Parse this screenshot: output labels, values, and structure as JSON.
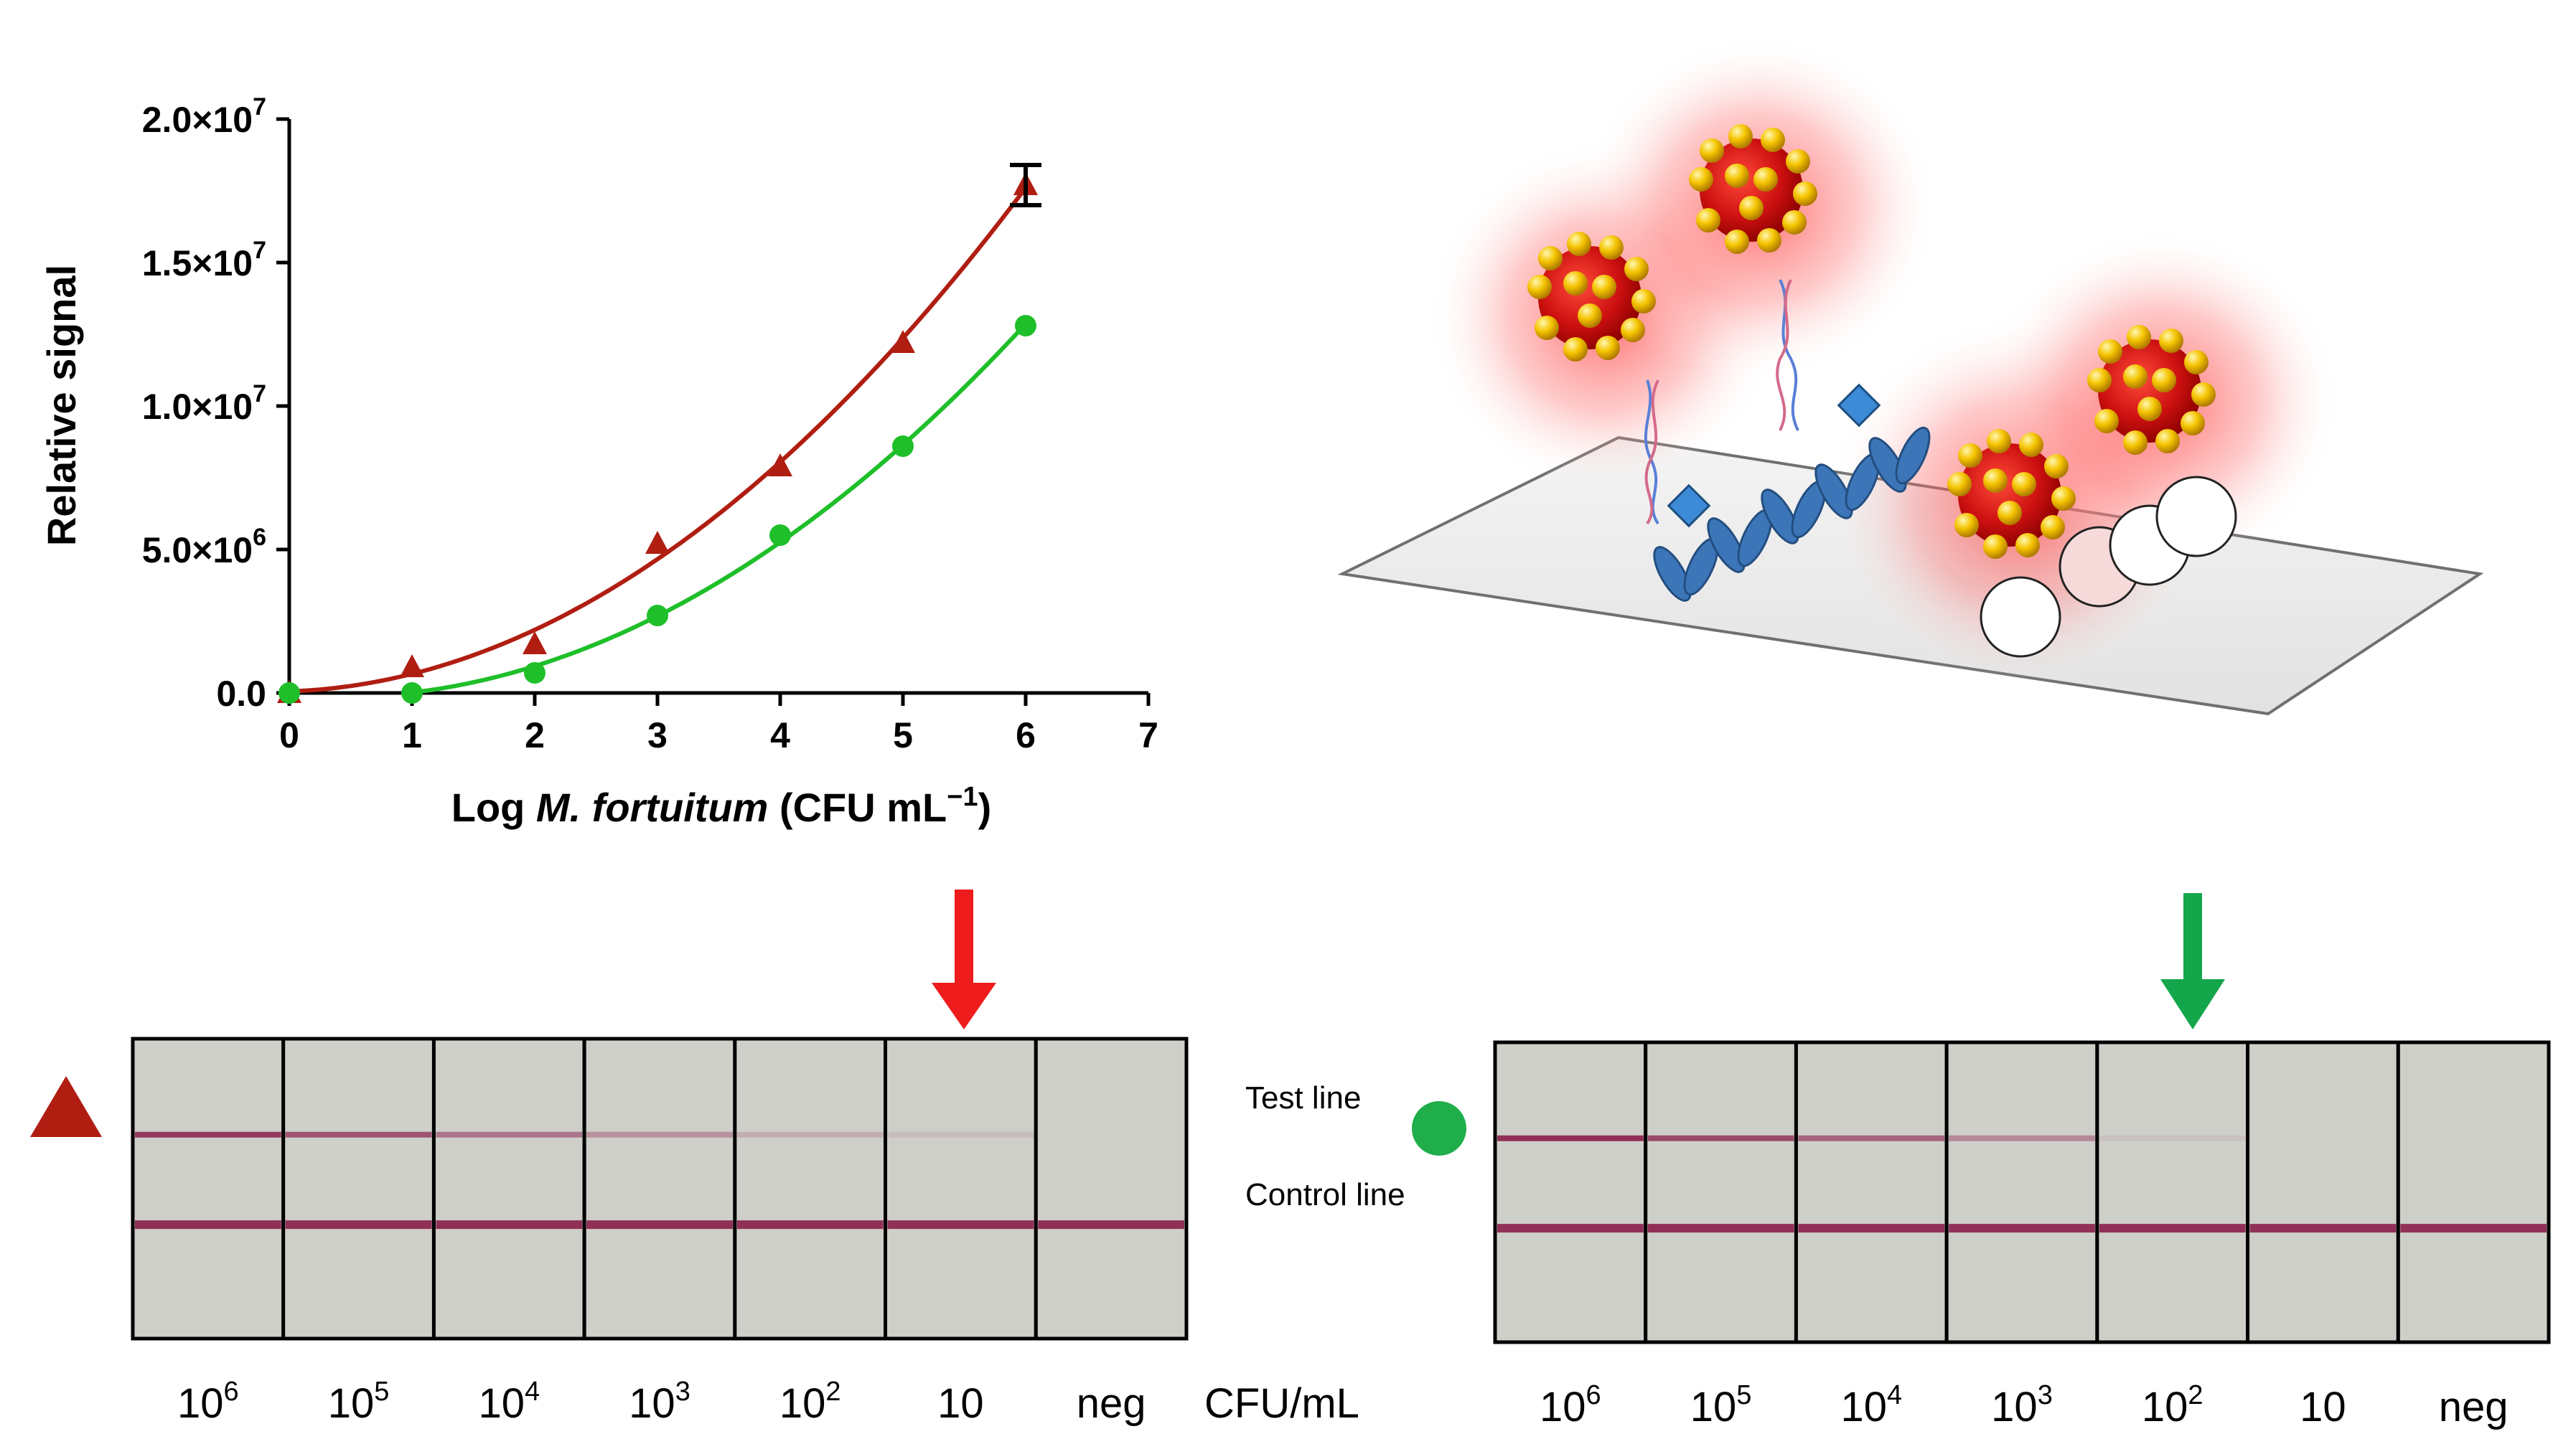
{
  "colors": {
    "series_red": "#b01e12",
    "series_green": "#1fbf2a",
    "arrow_red": "#ee1c1c",
    "arrow_green": "#14a64a",
    "strip_bg": "#cfcfca",
    "line_color": "#8a1e4a"
  },
  "chart_data": {
    "type": "line",
    "title": "",
    "xlabel_prefix": "Log ",
    "xlabel_italic": "M. fortuitum",
    "xlabel_unit": " (CFU mL",
    "xlabel_unit_sup": "−1",
    "xlabel_close": ")",
    "ylabel": "Relative signal",
    "xlim": [
      0,
      7
    ],
    "ylim": [
      0,
      20000000
    ],
    "x_ticks": [
      "0",
      "1",
      "2",
      "3",
      "4",
      "5",
      "6",
      "7"
    ],
    "y_ticks": [
      {
        "value": 0,
        "label": "0.0"
      },
      {
        "value": 5000000,
        "mant": "5.0",
        "exp": "6"
      },
      {
        "value": 10000000,
        "mant": "1.0",
        "exp": "7"
      },
      {
        "value": 15000000,
        "mant": "1.5",
        "exp": "7"
      },
      {
        "value": 20000000,
        "mant": "2.0",
        "exp": "7"
      }
    ],
    "times_sign": "×10",
    "series": [
      {
        "name": "triangle",
        "marker": "triangle",
        "x": [
          0,
          1,
          2,
          3,
          4,
          5,
          6
        ],
        "y": [
          0,
          900000,
          1700000,
          5200000,
          7900000,
          12200000,
          17700000
        ],
        "error_bar": {
          "x": 6,
          "low": 17000000,
          "high": 18400000
        }
      },
      {
        "name": "circle",
        "marker": "circle",
        "x": [
          0,
          1,
          2,
          3,
          4,
          5,
          6
        ],
        "y": [
          0,
          0,
          700000,
          2700000,
          5500000,
          8600000,
          12800000
        ]
      }
    ]
  },
  "strips": {
    "left": {
      "lanes": [
        {
          "base": "10",
          "sup": "6",
          "test": 0.85
        },
        {
          "base": "10",
          "sup": "5",
          "test": 0.7
        },
        {
          "base": "10",
          "sup": "4",
          "test": 0.5
        },
        {
          "base": "10",
          "sup": "3",
          "test": 0.35
        },
        {
          "base": "10",
          "sup": "2",
          "test": 0.18
        },
        {
          "base": "10",
          "sup": "",
          "test": 0.1
        },
        {
          "base": "neg",
          "sup": "",
          "test": 0.0
        }
      ],
      "unit": "CFU/mL"
    },
    "right": {
      "lanes": [
        {
          "base": "10",
          "sup": "6",
          "test": 0.9
        },
        {
          "base": "10",
          "sup": "5",
          "test": 0.75
        },
        {
          "base": "10",
          "sup": "4",
          "test": 0.6
        },
        {
          "base": "10",
          "sup": "3",
          "test": 0.4
        },
        {
          "base": "10",
          "sup": "2",
          "test": 0.08
        },
        {
          "base": "10",
          "sup": "",
          "test": 0.0
        },
        {
          "base": "neg",
          "sup": "",
          "test": 0.0
        }
      ]
    },
    "test_line_label": "Test line",
    "control_line_label": "Control line"
  }
}
